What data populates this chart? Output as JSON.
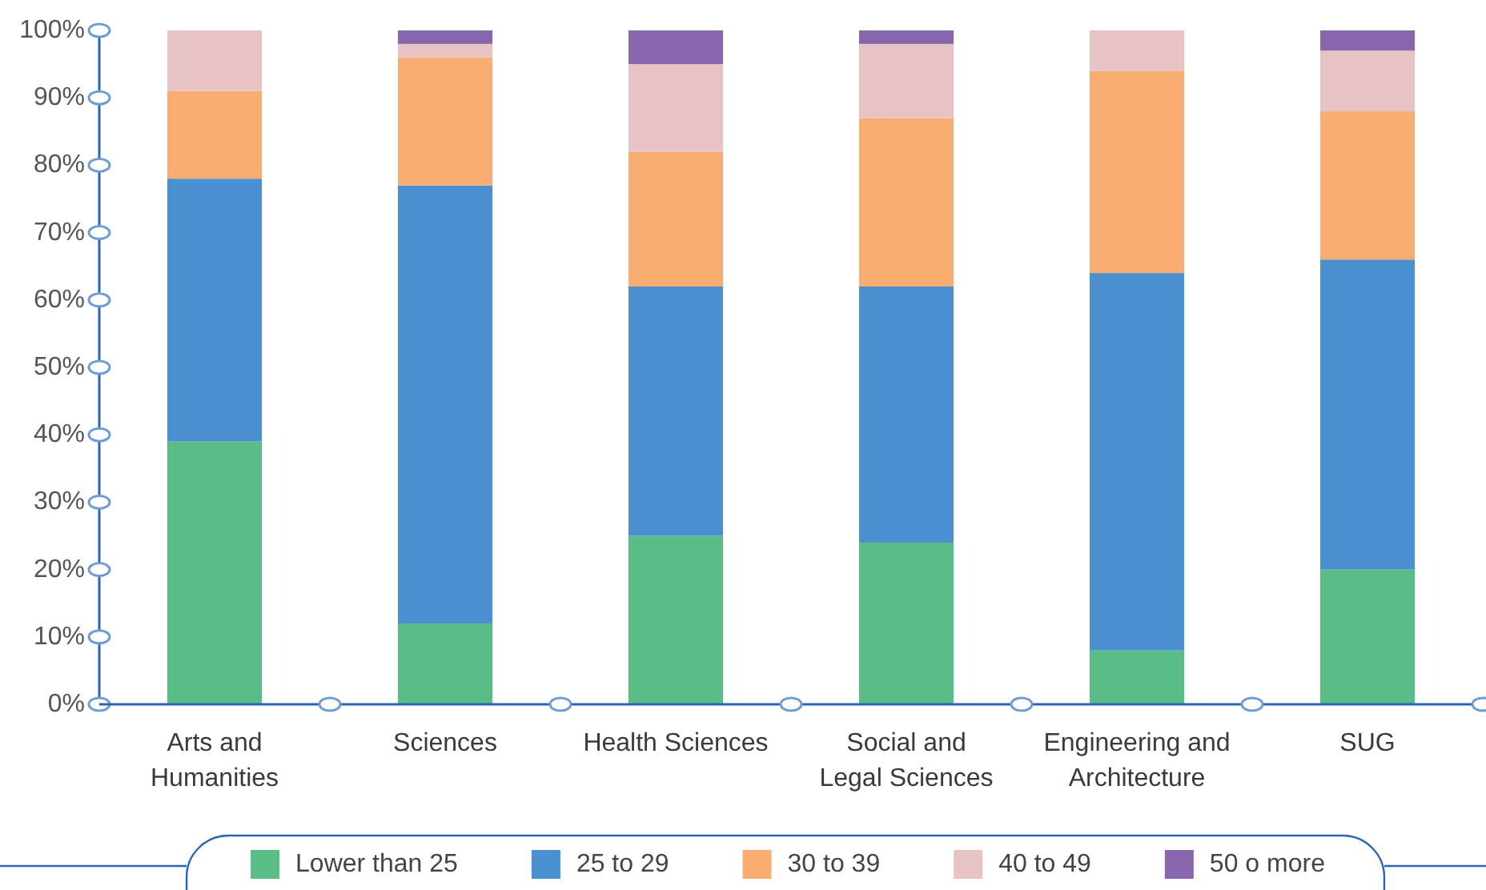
{
  "chart_data": {
    "type": "bar",
    "stacked": true,
    "legend": "bottom",
    "categories": [
      "Arts and Humanities",
      "Sciences",
      "Health Sciences",
      "Social and Legal Sciences",
      "Engineering and Architecture",
      "SUG"
    ],
    "series": [
      {
        "name": "Lower than 25",
        "color": "#58bd87",
        "values": [
          39,
          12,
          25,
          24,
          8,
          20
        ]
      },
      {
        "name": "25 to 29",
        "color": "#4a8fcf",
        "values": [
          39,
          65,
          37,
          38,
          56,
          46
        ]
      },
      {
        "name": "30 to 39",
        "color": "#f8ad73",
        "values": [
          13,
          19,
          20,
          25,
          30,
          22
        ]
      },
      {
        "name": "40 to 49",
        "color": "#e8c3c3",
        "values": [
          9,
          2,
          13,
          11,
          6,
          9
        ]
      },
      {
        "name": "50 o more",
        "color": "#8866ad",
        "values": [
          0,
          2,
          5,
          2,
          0,
          3
        ]
      }
    ],
    "ylim": [
      0,
      100
    ],
    "yticks": [
      {
        "value": 0,
        "label": "0%"
      },
      {
        "value": 10,
        "label": "10%"
      },
      {
        "value": 20,
        "label": "20%"
      },
      {
        "value": 30,
        "label": "30%"
      },
      {
        "value": 40,
        "label": "40%"
      },
      {
        "value": 50,
        "label": "50%"
      },
      {
        "value": 60,
        "label": "60%"
      },
      {
        "value": 70,
        "label": "70%"
      },
      {
        "value": 80,
        "label": "80%"
      },
      {
        "value": 90,
        "label": "90%"
      },
      {
        "value": 100,
        "label": "100%"
      }
    ]
  }
}
